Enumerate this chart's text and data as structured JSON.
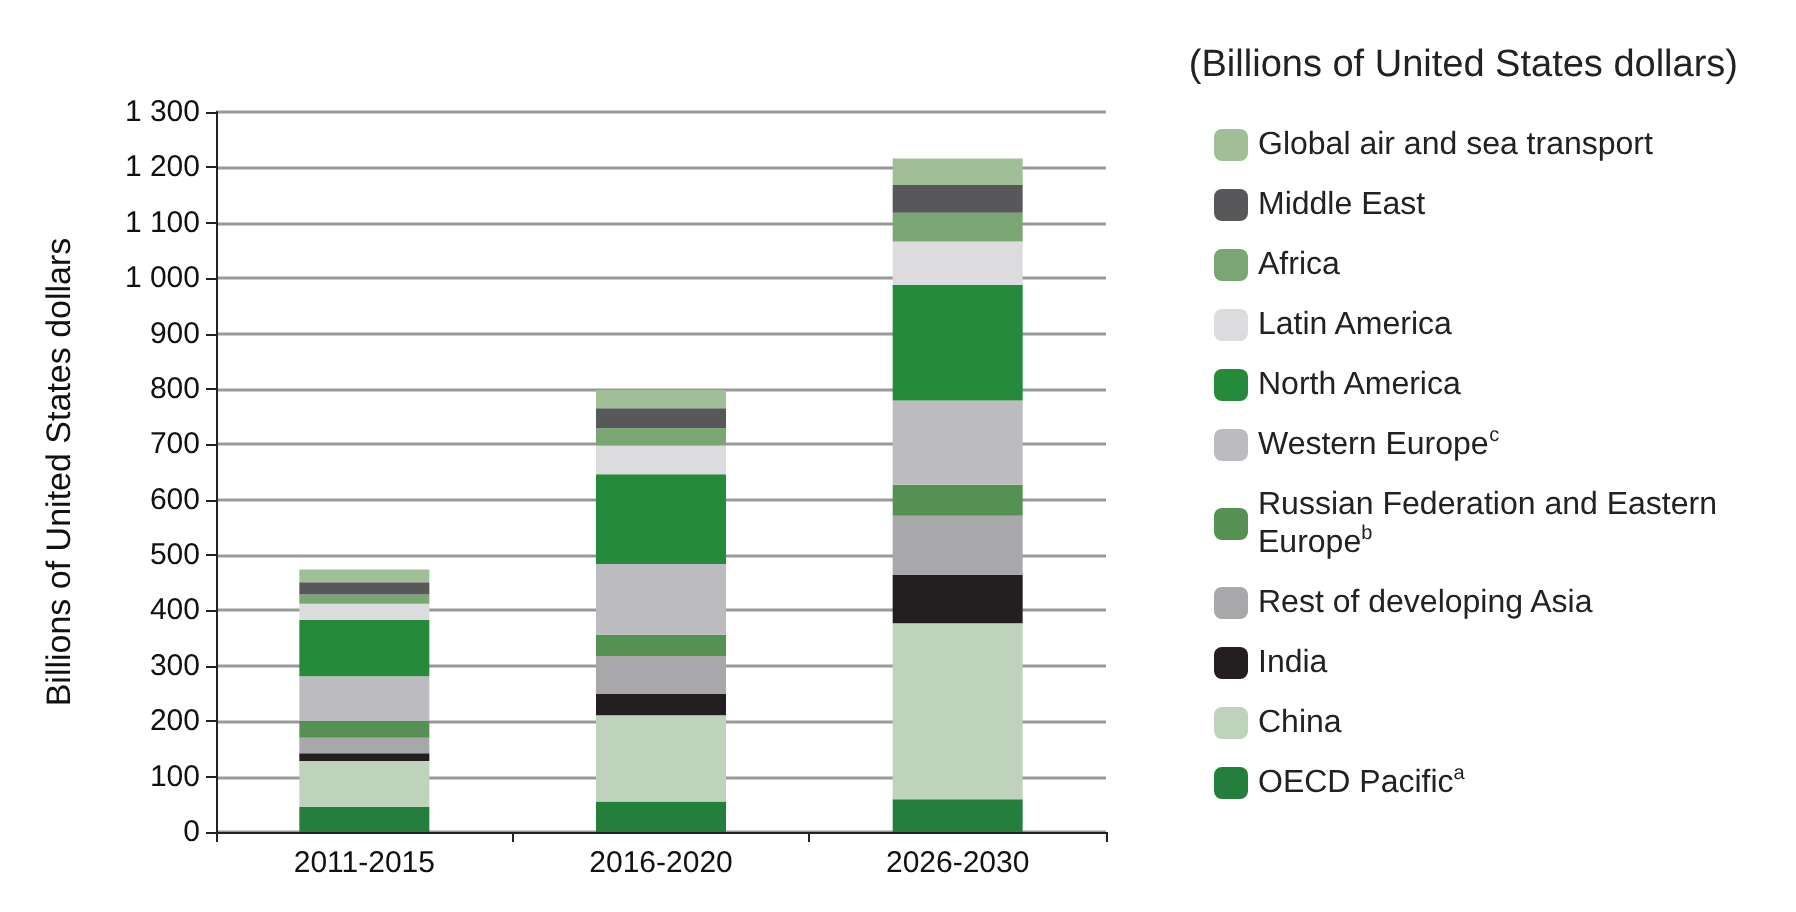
{
  "chart_data": {
    "type": "bar",
    "stacked": true,
    "title": "(Billions of United States dollars)",
    "ylabel": "Billions of United States dollars",
    "categories": [
      "2011-2015",
      "2016-2020",
      "2026-2030"
    ],
    "series": [
      {
        "name": "OECD Pacific$^{a}$",
        "color": "#237f3b",
        "values": [
          45,
          55,
          59
        ]
      },
      {
        "name": "China",
        "color": "#bfd3bc",
        "values": [
          83,
          156,
          318
        ]
      },
      {
        "name": "India",
        "color": "#231f20",
        "values": [
          14,
          38,
          87
        ]
      },
      {
        "name": "Rest of developing Asia",
        "color": "#a8a8ab",
        "values": [
          28,
          69,
          107
        ]
      },
      {
        "name": "Russian Federation and Eastern Europe$^{b}$",
        "color": "#559153",
        "values": [
          31,
          38,
          56
        ]
      },
      {
        "name": "Western Europe$^{c}$",
        "color": "#bcbcc0",
        "values": [
          80,
          128,
          152
        ]
      },
      {
        "name": "North America",
        "color": "#258a3c",
        "values": [
          102,
          162,
          209
        ]
      },
      {
        "name": "Latin America",
        "color": "#dcdcde",
        "values": [
          29,
          52,
          78
        ]
      },
      {
        "name": "Africa",
        "color": "#79a672",
        "values": [
          17,
          31,
          52
        ]
      },
      {
        "name": "Middle East",
        "color": "#58585a",
        "values": [
          22,
          36,
          50
        ]
      },
      {
        "name": "Global air and sea transport",
        "color": "#a0bf98",
        "values": [
          23,
          33,
          48
        ]
      }
    ],
    "ylim": [
      0,
      1300
    ],
    "yticks": [
      0,
      100,
      200,
      300,
      400,
      500,
      600,
      700,
      800,
      900,
      {
        "value": 1000,
        "label": "1 000"
      },
      {
        "value": 1100,
        "label": "1 100"
      },
      {
        "value": 1200,
        "label": "1 200"
      },
      {
        "value": 1300,
        "label": "1 300"
      }
    ],
    "grid": "y",
    "legend": "right"
  }
}
